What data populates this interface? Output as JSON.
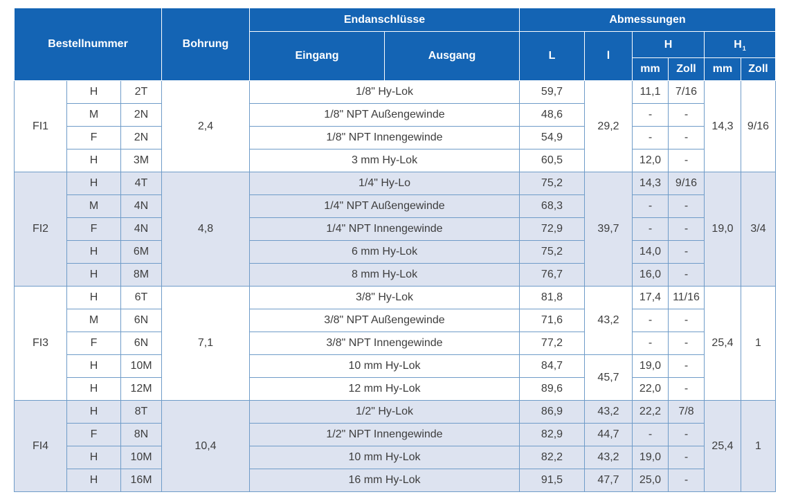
{
  "header": {
    "bestellnummer": "Bestellnummer",
    "bohrung": "Bohrung",
    "endanschluesse": "Endanschlüsse",
    "eingang": "Eingang",
    "ausgang": "Ausgang",
    "abmessungen": "Abmessungen",
    "L": "L",
    "l": "l",
    "H": "H",
    "H1_main": "H",
    "H1_sub": "1",
    "mm": "mm",
    "zoll": "Zoll"
  },
  "groups": [
    {
      "code": "FI1",
      "bohrung": "2,4",
      "H1_mm": "14,3",
      "H1_zoll": "9/16",
      "rows": [
        {
          "c1": "H",
          "c2": "2T",
          "conn": "1/8\" Hy-Lok",
          "L": "59,7",
          "Hmm": "11,1",
          "Hzoll": "7/16"
        },
        {
          "c1": "M",
          "c2": "2N",
          "conn": "1/8\" NPT Außengewinde",
          "L": "48,6",
          "Hmm": "-",
          "Hzoll": "-"
        },
        {
          "c1": "F",
          "c2": "2N",
          "conn": "1/8\" NPT Innengewinde",
          "L": "54,9",
          "Hmm": "-",
          "Hzoll": "-"
        },
        {
          "c1": "H",
          "c2": "3M",
          "conn": "3 mm Hy-Lok",
          "L": "60,5",
          "Hmm": "12,0",
          "Hzoll": "-"
        }
      ],
      "l_cells": [
        {
          "value": "29,2",
          "span": 4
        }
      ]
    },
    {
      "code": "FI2",
      "bohrung": "4,8",
      "H1_mm": "19,0",
      "H1_zoll": "3/4",
      "rows": [
        {
          "c1": "H",
          "c2": "4T",
          "conn": "1/4\" Hy-Lo",
          "L": "75,2",
          "Hmm": "14,3",
          "Hzoll": "9/16"
        },
        {
          "c1": "M",
          "c2": "4N",
          "conn": "1/4\" NPT Außengewinde",
          "L": "68,3",
          "Hmm": "-",
          "Hzoll": "-"
        },
        {
          "c1": "F",
          "c2": "4N",
          "conn": "1/4\" NPT Innengewinde",
          "L": "72,9",
          "Hmm": "-",
          "Hzoll": "-"
        },
        {
          "c1": "H",
          "c2": "6M",
          "conn": "6 mm Hy-Lok",
          "L": "75,2",
          "Hmm": "14,0",
          "Hzoll": "-"
        },
        {
          "c1": "H",
          "c2": "8M",
          "conn": "8 mm Hy-Lok",
          "L": "76,7",
          "Hmm": "16,0",
          "Hzoll": "-"
        }
      ],
      "l_cells": [
        {
          "value": "39,7",
          "span": 5
        }
      ]
    },
    {
      "code": "FI3",
      "bohrung": "7,1",
      "H1_mm": "25,4",
      "H1_zoll": "1",
      "rows": [
        {
          "c1": "H",
          "c2": "6T",
          "conn": "3/8\" Hy-Lok",
          "L": "81,8",
          "Hmm": "17,4",
          "Hzoll": "11/16"
        },
        {
          "c1": "M",
          "c2": "6N",
          "conn": "3/8\" NPT Außengewinde",
          "L": "71,6",
          "Hmm": "-",
          "Hzoll": "-"
        },
        {
          "c1": "F",
          "c2": "6N",
          "conn": "3/8\" NPT Innengewinde",
          "L": "77,2",
          "Hmm": "-",
          "Hzoll": "-"
        },
        {
          "c1": "H",
          "c2": "10M",
          "conn": "10 mm Hy-Lok",
          "L": "84,7",
          "Hmm": "19,0",
          "Hzoll": "-"
        },
        {
          "c1": "H",
          "c2": "12M",
          "conn": "12 mm Hy-Lok",
          "L": "89,6",
          "Hmm": "22,0",
          "Hzoll": "-"
        }
      ],
      "l_cells": [
        {
          "value": "43,2",
          "span": 3
        },
        {
          "value": "45,7",
          "span": 2
        }
      ]
    },
    {
      "code": "FI4",
      "bohrung": "10,4",
      "H1_mm": "25,4",
      "H1_zoll": "1",
      "rows": [
        {
          "c1": "H",
          "c2": "8T",
          "conn": "1/2\" Hy-Lok",
          "L": "86,9",
          "Hmm": "22,2",
          "Hzoll": "7/8"
        },
        {
          "c1": "F",
          "c2": "8N",
          "conn": "1/2\" NPT Innengewinde",
          "L": "82,9",
          "Hmm": "-",
          "Hzoll": "-"
        },
        {
          "c1": "H",
          "c2": "10M",
          "conn": "10 mm Hy-Lok",
          "L": "82,2",
          "Hmm": "19,0",
          "Hzoll": "-"
        },
        {
          "c1": "H",
          "c2": "16M",
          "conn": "16 mm Hy-Lok",
          "L": "91,5",
          "Hmm": "25,0",
          "Hzoll": "-"
        }
      ],
      "l_cells": [
        {
          "value": "43,2",
          "span": 1
        },
        {
          "value": "44,7",
          "span": 1
        },
        {
          "value": "43,2",
          "span": 1
        },
        {
          "value": "47,7",
          "span": 1
        }
      ]
    }
  ]
}
